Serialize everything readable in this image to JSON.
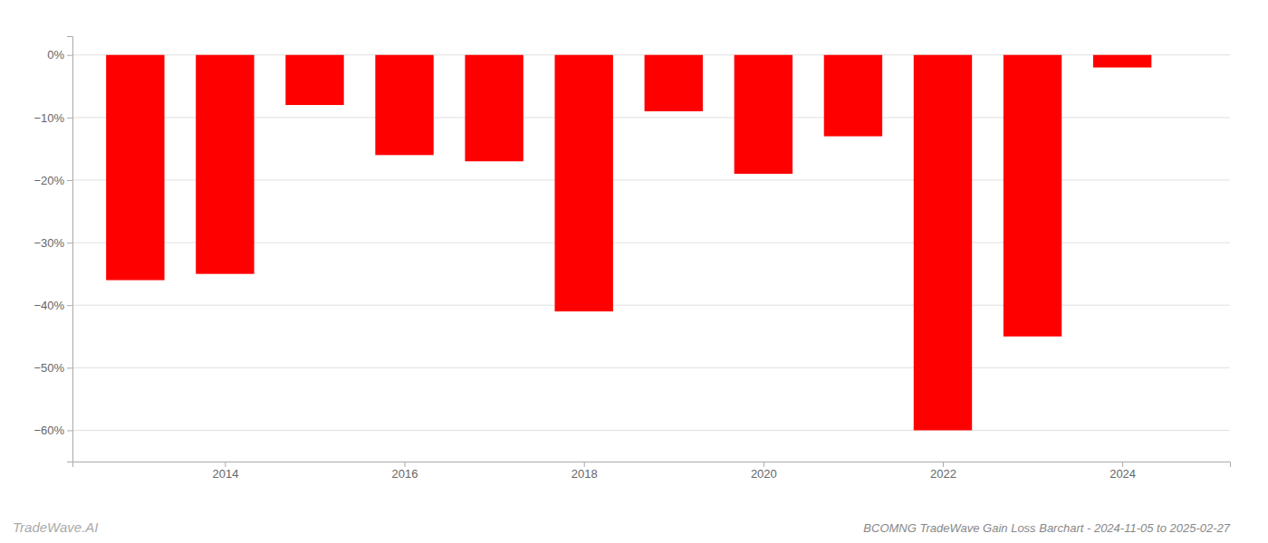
{
  "chart_data": {
    "type": "bar",
    "title": "BCOMNG TradeWave Gain Loss Barchart - 2024-11-05 to 2025-02-27",
    "annotations": [
      "TradeWave.AI"
    ],
    "x": [
      2013,
      2014,
      2015,
      2016,
      2017,
      2018,
      2019,
      2020,
      2021,
      2022,
      2023,
      2024
    ],
    "values": [
      -36,
      -35,
      -8,
      -16,
      -17,
      -41,
      -9,
      -19,
      -13,
      -60,
      -45,
      -2
    ],
    "color": "#ff0000",
    "xlim": [
      2012.3,
      2025.2
    ],
    "xticks": [
      2014,
      2016,
      2018,
      2020,
      2022,
      2024
    ],
    "ylim": [
      -65,
      3
    ],
    "yticks": [
      {
        "value": 0,
        "label": "0%"
      },
      {
        "value": -10,
        "label": "−10%"
      },
      {
        "value": -20,
        "label": "−20%"
      },
      {
        "value": -30,
        "label": "−30%"
      },
      {
        "value": -40,
        "label": "−40%"
      },
      {
        "value": -50,
        "label": "−50%"
      },
      {
        "value": -60,
        "label": "−60%"
      }
    ],
    "grid": true
  }
}
